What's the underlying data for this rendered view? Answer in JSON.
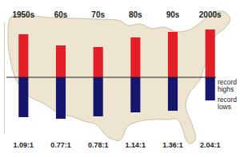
{
  "chart_data": {
    "type": "bar",
    "categories": [
      "1950s",
      "60s",
      "70s",
      "80s",
      "90s",
      "2000s"
    ],
    "series": [
      {
        "name": "record highs",
        "color": "#e41e26",
        "values": [
          54,
          40,
          38,
          50,
          57,
          60
        ]
      },
      {
        "name": "record lows",
        "color": "#16166e",
        "values": [
          -50,
          -52,
          -49,
          -44,
          -42,
          -29
        ]
      }
    ],
    "ratio_labels": [
      "1.09:1",
      "0.77:1",
      "0.78:1",
      "1.14:1",
      "1.36:1",
      "2.04:1"
    ],
    "ylim": [
      -70,
      70
    ],
    "tick_labels": false
  }
}
